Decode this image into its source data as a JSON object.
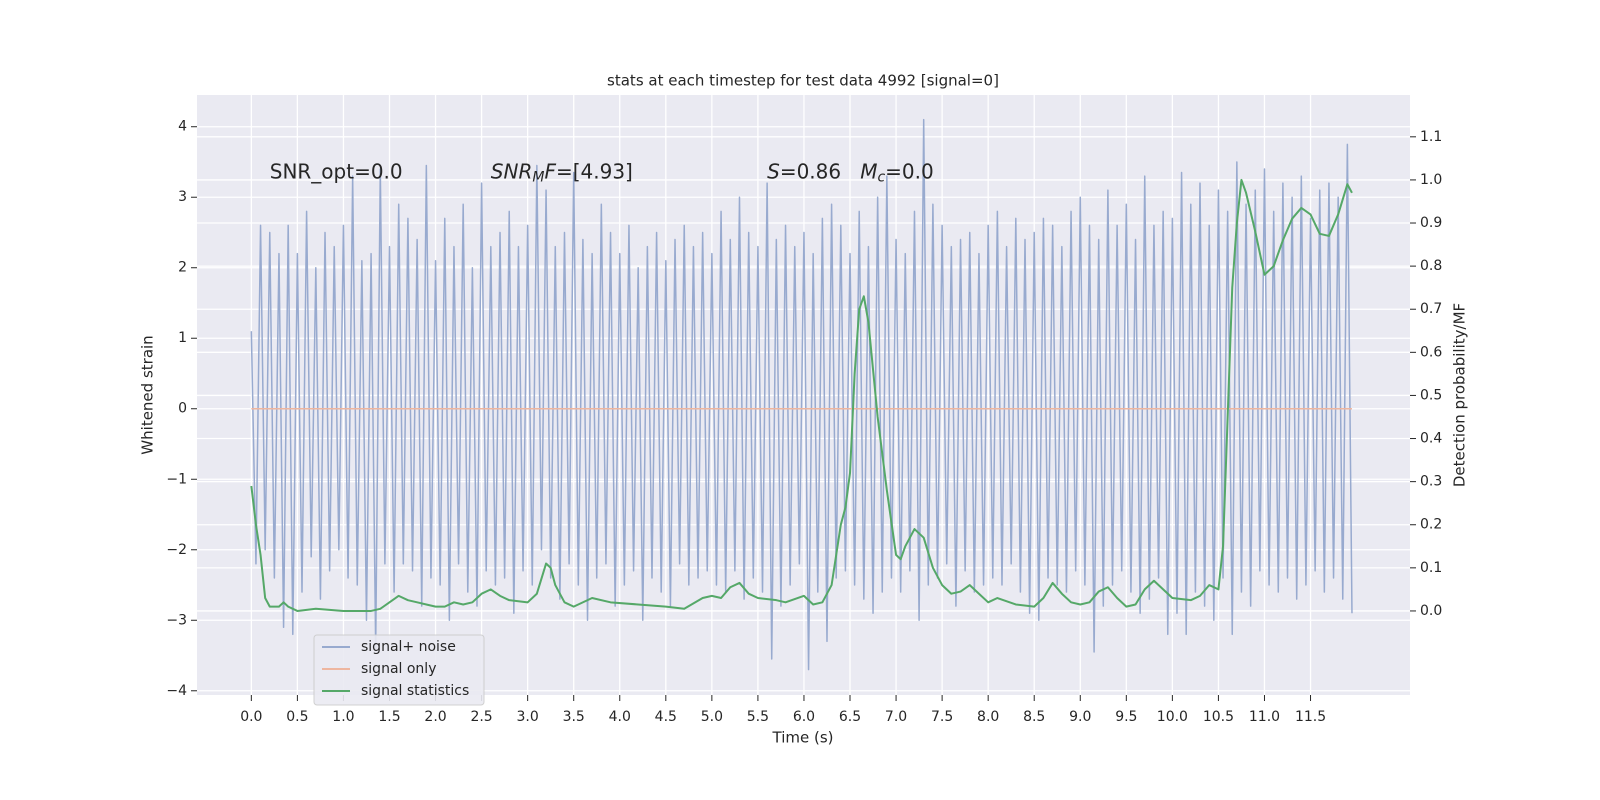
{
  "chart_data": {
    "type": "line",
    "title": "stats at each timestep for test data 4992 [signal=0]",
    "xlabel": "Time (s)",
    "ylabel": "Whitened strain",
    "y2label": "Detection probability/MF",
    "xlim": [
      -0.59,
      12.58
    ],
    "ylim": [
      -4.06,
      4.45
    ],
    "y2lim": [
      -0.195,
      1.197
    ],
    "xticks": [
      {
        "value": 0,
        "label": "0.0"
      },
      {
        "value": 0.5,
        "label": "0.5"
      },
      {
        "value": 1,
        "label": "1.0"
      },
      {
        "value": 1.5,
        "label": "1.5"
      },
      {
        "value": 2,
        "label": "2.0"
      },
      {
        "value": 2.5,
        "label": "2.5"
      },
      {
        "value": 3,
        "label": "3.0"
      },
      {
        "value": 3.5,
        "label": "3.5"
      },
      {
        "value": 4,
        "label": "4.0"
      },
      {
        "value": 4.5,
        "label": "4.5"
      },
      {
        "value": 5,
        "label": "5.0"
      },
      {
        "value": 5.5,
        "label": "5.5"
      },
      {
        "value": 6,
        "label": "6.0"
      },
      {
        "value": 6.5,
        "label": "6.5"
      },
      {
        "value": 7,
        "label": "7.0"
      },
      {
        "value": 7.5,
        "label": "7.5"
      },
      {
        "value": 8,
        "label": "8.0"
      },
      {
        "value": 8.5,
        "label": "8.5"
      },
      {
        "value": 9,
        "label": "9.0"
      },
      {
        "value": 9.5,
        "label": "9.5"
      },
      {
        "value": 10,
        "label": "10.0"
      },
      {
        "value": 10.5,
        "label": "10.5"
      },
      {
        "value": 11,
        "label": "11.0"
      },
      {
        "value": 11.5,
        "label": "11.5"
      }
    ],
    "yticks": [
      {
        "value": -4,
        "label": "−4"
      },
      {
        "value": -3,
        "label": "−3"
      },
      {
        "value": -2,
        "label": "−2"
      },
      {
        "value": -1,
        "label": "−1"
      },
      0,
      1,
      2,
      3,
      4
    ],
    "y2ticks": [
      {
        "value": 0,
        "label": "0.0"
      },
      {
        "value": 0.1,
        "label": "0.1"
      },
      {
        "value": 0.2,
        "label": "0.2"
      },
      {
        "value": 0.3,
        "label": "0.3"
      },
      {
        "value": 0.4,
        "label": "0.4"
      },
      {
        "value": 0.5,
        "label": "0.5"
      },
      {
        "value": 0.6,
        "label": "0.6"
      },
      {
        "value": 0.7,
        "label": "0.7"
      },
      {
        "value": 0.8,
        "label": "0.8"
      },
      {
        "value": 0.9,
        "label": "0.9"
      },
      {
        "value": 1,
        "label": "1.0"
      },
      {
        "value": 1.1,
        "label": "1.1"
      }
    ],
    "grid": true,
    "legend": "lower left",
    "annotations": [
      {
        "x": 0.2,
        "y": 3.35,
        "parts": [
          {
            "text": "SNR_opt=0.0",
            "style": "normal"
          }
        ]
      },
      {
        "x": 2.6,
        "y": 3.35,
        "parts": [
          {
            "text": "SNR",
            "style": "italic"
          },
          {
            "text": "M",
            "style": "sub"
          },
          {
            "text": "F",
            "style": "italic"
          },
          {
            "text": "=[4.93]",
            "style": "normal"
          }
        ]
      },
      {
        "x": 5.6,
        "y": 3.35,
        "parts": [
          {
            "text": "S",
            "style": "italic"
          },
          {
            "text": "=0.86   ",
            "style": "normal"
          },
          {
            "text": "M",
            "style": "italic"
          },
          {
            "text": "c",
            "style": "sub"
          },
          {
            "text": "=0.0",
            "style": "normal"
          }
        ]
      }
    ],
    "series": [
      {
        "name": "signal+ noise",
        "color": "#98aacf",
        "x": [
          0,
          0.05,
          0.1,
          0.15,
          0.2,
          0.25,
          0.3,
          0.35,
          0.4,
          0.45,
          0.5,
          0.55,
          0.6,
          0.65,
          0.7,
          0.75,
          0.8,
          0.85,
          0.9,
          0.95,
          1,
          1.05,
          1.1,
          1.15,
          1.2,
          1.25,
          1.3,
          1.35,
          1.4,
          1.45,
          1.5,
          1.55,
          1.6,
          1.65,
          1.7,
          1.75,
          1.8,
          1.85,
          1.9,
          1.95,
          2,
          2.05,
          2.1,
          2.15,
          2.2,
          2.25,
          2.3,
          2.35,
          2.4,
          2.45,
          2.5,
          2.55,
          2.6,
          2.65,
          2.7,
          2.75,
          2.8,
          2.85,
          2.9,
          2.95,
          3,
          3.05,
          3.1,
          3.15,
          3.2,
          3.25,
          3.3,
          3.35,
          3.4,
          3.45,
          3.5,
          3.55,
          3.6,
          3.65,
          3.7,
          3.75,
          3.8,
          3.85,
          3.9,
          3.95,
          4,
          4.05,
          4.1,
          4.15,
          4.2,
          4.25,
          4.3,
          4.35,
          4.4,
          4.45,
          4.5,
          4.55,
          4.6,
          4.65,
          4.7,
          4.75,
          4.8,
          4.85,
          4.9,
          4.95,
          5,
          5.05,
          5.1,
          5.15,
          5.2,
          5.25,
          5.3,
          5.35,
          5.4,
          5.45,
          5.5,
          5.55,
          5.6,
          5.65,
          5.7,
          5.75,
          5.8,
          5.85,
          5.9,
          5.95,
          6,
          6.05,
          6.1,
          6.15,
          6.2,
          6.25,
          6.3,
          6.35,
          6.4,
          6.45,
          6.5,
          6.55,
          6.6,
          6.65,
          6.7,
          6.75,
          6.8,
          6.85,
          6.9,
          6.95,
          7,
          7.05,
          7.1,
          7.15,
          7.2,
          7.25,
          7.3,
          7.35,
          7.4,
          7.45,
          7.5,
          7.55,
          7.6,
          7.65,
          7.7,
          7.75,
          7.8,
          7.85,
          7.9,
          7.95,
          8,
          8.05,
          8.1,
          8.15,
          8.2,
          8.25,
          8.3,
          8.35,
          8.4,
          8.45,
          8.5,
          8.55,
          8.6,
          8.65,
          8.7,
          8.75,
          8.8,
          8.85,
          8.9,
          8.95,
          9,
          9.05,
          9.1,
          9.15,
          9.2,
          9.25,
          9.3,
          9.35,
          9.4,
          9.45,
          9.5,
          9.55,
          9.6,
          9.65,
          9.7,
          9.75,
          9.8,
          9.85,
          9.9,
          9.95,
          10,
          10.05,
          10.1,
          10.15,
          10.2,
          10.25,
          10.3,
          10.35,
          10.4,
          10.45,
          10.5,
          10.55,
          10.6,
          10.65,
          10.7,
          10.75,
          10.8,
          10.85,
          10.9,
          10.95,
          11,
          11.05,
          11.1,
          11.15,
          11.2,
          11.25,
          11.3,
          11.35,
          11.4,
          11.45,
          11.5,
          11.55,
          11.6,
          11.65,
          11.7,
          11.75,
          11.8,
          11.85,
          11.9,
          11.95
        ],
        "values": [
          1.1,
          -2.2,
          2.6,
          -2.0,
          2.5,
          -2.4,
          2.2,
          -3.1,
          2.6,
          -3.2,
          2.2,
          -2.6,
          2.8,
          -2.1,
          2.0,
          -2.7,
          2.5,
          -2.3,
          2.3,
          -2.0,
          2.6,
          -2.4,
          3.3,
          -2.5,
          2.1,
          -3.0,
          2.2,
          -3.4,
          3.4,
          -2.2,
          2.3,
          -2.6,
          2.9,
          -2.2,
          2.7,
          -2.3,
          2.4,
          -2.8,
          3.45,
          -2.4,
          2.1,
          -2.5,
          2.7,
          -3.0,
          2.3,
          -2.2,
          2.9,
          -2.6,
          2.0,
          -2.8,
          3.2,
          -2.3,
          2.3,
          -2.5,
          2.5,
          -2.4,
          2.8,
          -2.9,
          2.3,
          -2.3,
          2.6,
          -2.5,
          3.45,
          -2.0,
          3.1,
          -2.4,
          2.3,
          -2.7,
          2.5,
          -2.2,
          3.35,
          -2.5,
          2.4,
          -3.0,
          2.2,
          -2.4,
          2.9,
          -2.2,
          2.5,
          -2.8,
          2.2,
          -2.5,
          2.6,
          -2.3,
          2.0,
          -3.0,
          2.3,
          -2.4,
          2.5,
          -2.6,
          2.1,
          -2.8,
          2.4,
          -2.2,
          2.6,
          -2.5,
          2.3,
          -2.4,
          2.5,
          -2.3,
          2.2,
          -2.5,
          2.8,
          -2.6,
          2.4,
          -2.3,
          3.0,
          -2.7,
          2.5,
          -2.4,
          2.3,
          -2.6,
          3.2,
          -3.55,
          2.4,
          -2.8,
          2.6,
          -2.5,
          2.3,
          -2.2,
          2.5,
          -3.7,
          2.2,
          -2.6,
          2.7,
          -3.3,
          2.9,
          -2.4,
          2.6,
          -2.3,
          2.2,
          -2.5,
          2.8,
          -2.7,
          2.3,
          -2.9,
          3.0,
          -2.6,
          3.3,
          -2.4,
          2.4,
          -2.6,
          2.2,
          -2.3,
          2.8,
          -3.0,
          4.1,
          -2.5,
          2.9,
          -2.4,
          2.6,
          -2.2,
          2.3,
          -2.8,
          2.4,
          -2.3,
          2.5,
          -2.6,
          2.2,
          -2.5,
          2.6,
          -2.4,
          2.8,
          -2.5,
          2.3,
          -2.2,
          2.7,
          -2.6,
          2.4,
          -2.9,
          2.5,
          -3.0,
          2.7,
          -2.4,
          2.6,
          -2.5,
          2.3,
          -2.6,
          2.8,
          -2.3,
          3.0,
          -2.5,
          2.6,
          -3.45,
          2.4,
          -2.8,
          3.1,
          -2.5,
          2.6,
          -2.3,
          2.9,
          -2.6,
          2.4,
          -2.9,
          3.3,
          -2.7,
          2.6,
          -2.4,
          2.8,
          -3.2,
          2.7,
          -2.9,
          3.35,
          -3.2,
          2.9,
          -2.6,
          3.2,
          -2.8,
          2.6,
          -3.0,
          3.1,
          -2.4,
          2.8,
          -3.2,
          3.5,
          -2.6,
          2.9,
          -2.8,
          3.1,
          -2.3,
          3.4,
          -2.5,
          2.8,
          -2.6,
          3.2,
          -2.4,
          3.0,
          -2.7,
          3.3,
          -2.5,
          2.7,
          -2.3,
          3.1,
          -2.6,
          3.2,
          -2.4,
          3.0,
          -2.7,
          3.75,
          -2.9
        ]
      },
      {
        "name": "signal only",
        "color": "#eeb6a0",
        "x": [
          0,
          11.95
        ],
        "values": [
          0,
          0
        ]
      },
      {
        "name": "signal statistics",
        "color": "#55a868",
        "axis": "y2",
        "x": [
          0,
          0.05,
          0.1,
          0.15,
          0.2,
          0.3,
          0.35,
          0.4,
          0.5,
          0.7,
          1.0,
          1.3,
          1.4,
          1.5,
          1.6,
          1.7,
          1.8,
          1.9,
          2.0,
          2.1,
          2.2,
          2.3,
          2.4,
          2.5,
          2.6,
          2.7,
          2.8,
          3.0,
          3.1,
          3.2,
          3.25,
          3.3,
          3.4,
          3.5,
          3.7,
          3.9,
          4.2,
          4.5,
          4.7,
          4.9,
          5.0,
          5.1,
          5.2,
          5.3,
          5.4,
          5.5,
          5.7,
          5.8,
          6.0,
          6.1,
          6.2,
          6.3,
          6.4,
          6.45,
          6.5,
          6.55,
          6.6,
          6.65,
          6.7,
          6.8,
          6.9,
          7.0,
          7.05,
          7.1,
          7.2,
          7.3,
          7.4,
          7.5,
          7.6,
          7.7,
          7.8,
          7.9,
          8.0,
          8.1,
          8.3,
          8.5,
          8.6,
          8.7,
          8.8,
          8.9,
          9.0,
          9.1,
          9.2,
          9.3,
          9.4,
          9.5,
          9.6,
          9.7,
          9.8,
          9.9,
          10.0,
          10.2,
          10.3,
          10.4,
          10.5,
          10.55,
          10.6,
          10.65,
          10.7,
          10.75,
          10.8,
          10.9,
          11.0,
          11.1,
          11.2,
          11.3,
          11.4,
          11.5,
          11.6,
          11.7,
          11.8,
          11.9,
          11.95
        ],
        "values": [
          0.29,
          0.2,
          0.13,
          0.03,
          0.01,
          0.01,
          0.02,
          0.01,
          0.0,
          0.005,
          0.0,
          0.0,
          0.005,
          0.02,
          0.035,
          0.025,
          0.02,
          0.015,
          0.01,
          0.01,
          0.02,
          0.015,
          0.02,
          0.04,
          0.05,
          0.035,
          0.025,
          0.02,
          0.04,
          0.11,
          0.1,
          0.06,
          0.02,
          0.01,
          0.03,
          0.02,
          0.015,
          0.01,
          0.005,
          0.03,
          0.035,
          0.03,
          0.055,
          0.065,
          0.04,
          0.03,
          0.025,
          0.02,
          0.035,
          0.015,
          0.02,
          0.06,
          0.2,
          0.24,
          0.32,
          0.55,
          0.7,
          0.73,
          0.67,
          0.45,
          0.28,
          0.13,
          0.12,
          0.15,
          0.19,
          0.17,
          0.1,
          0.06,
          0.04,
          0.045,
          0.06,
          0.04,
          0.02,
          0.03,
          0.015,
          0.01,
          0.03,
          0.065,
          0.04,
          0.02,
          0.015,
          0.02,
          0.045,
          0.055,
          0.03,
          0.01,
          0.015,
          0.05,
          0.07,
          0.05,
          0.03,
          0.025,
          0.035,
          0.06,
          0.05,
          0.15,
          0.45,
          0.75,
          0.9,
          1.0,
          0.97,
          0.88,
          0.78,
          0.8,
          0.86,
          0.91,
          0.935,
          0.92,
          0.875,
          0.87,
          0.92,
          0.99,
          0.97
        ]
      }
    ]
  }
}
